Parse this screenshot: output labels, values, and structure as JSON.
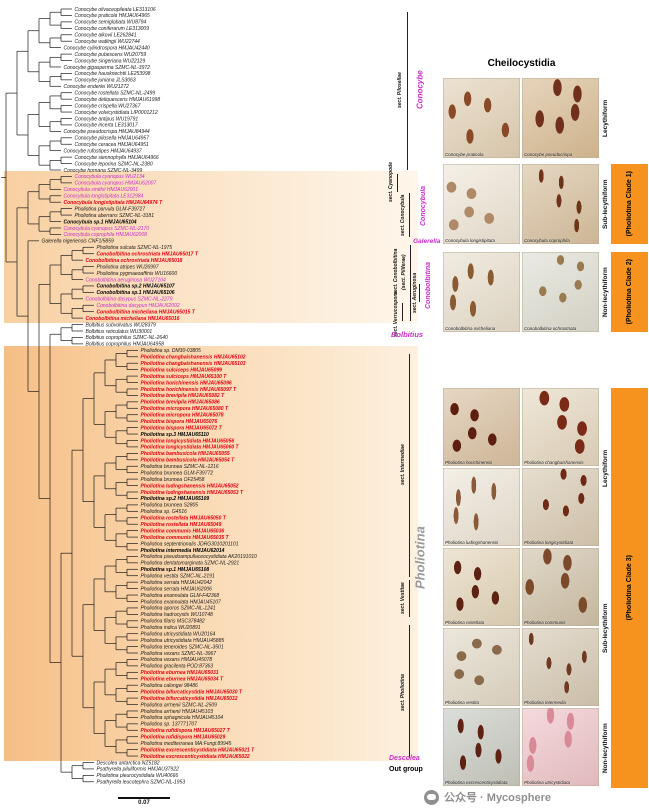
{
  "figure": {
    "title": "Cheilocystidia",
    "scale_bar": "0.07",
    "watermark": "公众号 · Mycosphere"
  },
  "colors": {
    "magenta": "#c92ec9",
    "red": "#e50012",
    "black": "#1a1a1a",
    "orange_bar": "#f6921e",
    "pholiotina_gray": "#9a9a9a"
  },
  "labels": {
    "genus_conocybe": "Conocybe",
    "genus_conocybula": "Conocybula",
    "genus_galerella": "Galerella",
    "genus_conobolbitina": "Conobolbitina",
    "genus_bolbitius": "Bolbitius",
    "genus_pholiotina": "Pholiotina",
    "genus_descolea": "Descolea",
    "outgroup": "Out group",
    "sect_pilosellae": "sect. Pilosellae",
    "sect_cyanopode": "sect. Cyanopode",
    "sect_conocybula": "sect. Conocybula",
    "sect_conobolbitina": "sect. Conobolbitina",
    "sect_piliferae": "(sect. Piliferae)",
    "sect_aeruginosa": "sect. Aeruginosa",
    "sect_verrucospora": "sect. Verrucospora",
    "sect_intermediae": "sect. Intermediae",
    "sect_vestitae": "sect. Vestitae",
    "sect_pholiotina": "sect. Pholiotina"
  },
  "forms": {
    "lecythiform": "Lecythiform",
    "sub_lecythiform": "Sub-lecythiform",
    "non_lecythiform": "Non-lecythiform"
  },
  "clade_bars": {
    "c1": "(Pholiotina Clade 1)",
    "c2": "(Pholiotina Clade 2)",
    "c3": "(Pholiotina Clade 3)"
  },
  "tree": {
    "clades": [
      {
        "name": "Conocybe",
        "leaves": [
          {
            "t": "Conocybe olivaceopileata LE313106",
            "s": "n"
          },
          {
            "t": "Conocybe praticola HMJAU64965",
            "s": "n"
          },
          {
            "t": "Conocybe semiglobata WU8794",
            "s": "n"
          },
          {
            "t": "Conocybe coniferarum LE313009",
            "s": "n"
          },
          {
            "t": "Conocybe alkovii LE262841",
            "s": "n"
          },
          {
            "t": "Conocybe watlingii WU22744",
            "s": "n"
          },
          {
            "t": "Conocybe cylindrospora HMJAU42440",
            "s": "n"
          },
          {
            "t": "Conocybe pubescens WU20759",
            "s": "n"
          },
          {
            "t": "Conocybe singeriana WU22129",
            "s": "n"
          },
          {
            "t": "Conocybe gigasperma SZMC-NL-3972",
            "s": "n"
          },
          {
            "t": "Conocybe hausknechtii LE253998",
            "s": "n"
          },
          {
            "t": "Conocybe juniana JLS3063",
            "s": "n"
          },
          {
            "t": "Conocybe enderlei WU21272",
            "s": "n"
          },
          {
            "t": "Conocybe rostellata SZMC-NL-2499",
            "s": "n"
          },
          {
            "t": "Conocybe deliquescens HMJAU61998",
            "s": "n"
          },
          {
            "t": "Conocybe crispella WU27367",
            "s": "n"
          },
          {
            "t": "Conocybe volvicystidiata LIP0001212",
            "s": "n"
          },
          {
            "t": "Conocybe antipus WU19791",
            "s": "n"
          },
          {
            "t": "Conocybe incerta LE313017",
            "s": "n"
          },
          {
            "t": "Conocybe pseudocrispa HMJAU84944",
            "s": "n"
          },
          {
            "t": "Conocybe pilosella HMJAU64957",
            "s": "n"
          },
          {
            "t": "Conocybe ceracea HMJAU64951",
            "s": "n"
          },
          {
            "t": "Conocybe rufostipes HMJAU64937",
            "s": "n"
          },
          {
            "t": "Conocybe siennophylla HMJAU64966",
            "s": "n"
          },
          {
            "t": "Conocybe leporina SZMC-NL-2380",
            "s": "n"
          },
          {
            "t": "Conocybe hornana SZMC-NL-3499",
            "s": "n"
          }
        ]
      },
      {
        "name": "Conocybula",
        "leaves": [
          {
            "t": "Conocybula cyanopus WU2134",
            "s": "m"
          },
          {
            "t": "Conocybula cyanopus HMJAU62007",
            "s": "m"
          },
          {
            "t": "Conocybula smithii HMJAU62001",
            "s": "m"
          },
          {
            "t": "Conocybula longistipitata LE312984",
            "s": "m"
          },
          {
            "t": "Conocybula longistipitata HMJAU64974 T",
            "s": "rb"
          },
          {
            "t": "Pholiotina parvula GLM-F39727",
            "s": "n"
          },
          {
            "t": "Pholiotina aberrans SZMC-NL-3181",
            "s": "n"
          },
          {
            "t": "Conocybula sp.1 HMJAU65104",
            "s": "b"
          },
          {
            "t": "Conocybula cyanopus SZMC-NL-2170",
            "s": "m"
          },
          {
            "t": "Conocybula coprophila HMJAU62008",
            "s": "m"
          }
        ]
      },
      {
        "name": "Galerella",
        "leaves": [
          {
            "t": "Galerella nigeriensis CNF1/5859",
            "s": "n"
          }
        ]
      },
      {
        "name": "Conobolbitina",
        "leaves": [
          {
            "t": "Pholiotina sulcata SZMC-NL-1975",
            "s": "n"
          },
          {
            "t": "Conobolbitina ochrostriata HMJAU65017 T",
            "s": "rb"
          },
          {
            "t": "Conobolbitina ochrostriata HMJAU65018",
            "s": "rb"
          },
          {
            "t": "Pholiotina atripes WU26997",
            "s": "n"
          },
          {
            "t": "Pholiotina pygmaeoaffinis WU16600",
            "s": "n"
          },
          {
            "t": "Conobolbitina aeruginosa WU27104",
            "s": "m"
          },
          {
            "t": "Conobolbitina sp.2 HMJAU65107",
            "s": "b"
          },
          {
            "t": "Conobolbitina sp.1 HMJAU65106",
            "s": "b"
          },
          {
            "t": "Conobolbitina dasypus SZMC-NL-2279",
            "s": "m"
          },
          {
            "t": "Conobolbitina dasypus HMJAU62002",
            "s": "m"
          },
          {
            "t": "Conobolbitina micheliana HMJAU65015 T",
            "s": "rb"
          },
          {
            "t": "Conobolbitina micheliana HMJAU65016",
            "s": "rb"
          }
        ]
      },
      {
        "name": "Bolbitius",
        "leaves": [
          {
            "t": "Bolbitius subvolvatus WU28379",
            "s": "n"
          },
          {
            "t": "Bolbitius reticulatus WU30001",
            "s": "n"
          },
          {
            "t": "Bolbitius coprophilus SZMC-NL-2640",
            "s": "n"
          },
          {
            "t": "Bolbitius coprophilus HMJAU64958",
            "s": "n"
          }
        ]
      },
      {
        "name": "Pholiotina",
        "leaves": [
          {
            "t": "Pholiotina sp. DM30-03805",
            "s": "n"
          },
          {
            "t": "Pholiotina changbaishanensis HMJAU65102",
            "s": "rb"
          },
          {
            "t": "Pholiotina changbaishanensis HMJAU65103",
            "s": "rb"
          },
          {
            "t": "Pholiotina sulciceps HMJAU65099",
            "s": "rb"
          },
          {
            "t": "Pholiotina sulciceps HMJAU65100 T",
            "s": "rb"
          },
          {
            "t": "Pholiotina horichinensis HMJAU65096",
            "s": "rb"
          },
          {
            "t": "Pholiotina horichinensis HMJAU65097 T",
            "s": "rb"
          },
          {
            "t": "Pholiotina brevipila HMJAU65082 T",
            "s": "rb"
          },
          {
            "t": "Pholiotina brevipila HMJAU65086",
            "s": "rb"
          },
          {
            "t": "Pholiotina micropora HMJAU65080 T",
            "s": "rb"
          },
          {
            "t": "Pholiotina micropora HMJAU65078",
            "s": "rb"
          },
          {
            "t": "Pholiotina bispora HMJAU65076",
            "s": "rb"
          },
          {
            "t": "Pholiotina bispora HMJAU65072 T",
            "s": "rb"
          },
          {
            "t": "Pholiotina sp.3 HMJAU65110",
            "s": "b"
          },
          {
            "t": "Pholiotina longicystidiata HMJAU65056",
            "s": "rb"
          },
          {
            "t": "Pholiotina longicystidiata HMJAU65060 T",
            "s": "rb"
          },
          {
            "t": "Pholiotina bambusicola HMJAU65055",
            "s": "rb"
          },
          {
            "t": "Pholiotina bambusicola HMJAU65054 T",
            "s": "rb"
          },
          {
            "t": "Pholiotina brunnea SZMC-NL-1216",
            "s": "n"
          },
          {
            "t": "Pholiotina brunnea GLM-F39772",
            "s": "n"
          },
          {
            "t": "Pholiotina brunnea OF25458",
            "s": "n"
          },
          {
            "t": "Pholiotina ludingshanensis HMJAU65052",
            "s": "rb"
          },
          {
            "t": "Pholiotina ludingshanensis HMJAU65053 T",
            "s": "rb"
          },
          {
            "t": "Pholiotina sp.2 HMJAU65109",
            "s": "b"
          },
          {
            "t": "Pholiotina brunnea S2805",
            "s": "n"
          },
          {
            "t": "Pholiotina sp. G4516",
            "s": "n"
          },
          {
            "t": "Pholiotina rostellata HMJAU65050 T",
            "s": "rb"
          },
          {
            "t": "Pholiotina rostellata HMJAU65049",
            "s": "rb"
          },
          {
            "t": "Pholiotina communis HMJAU65036",
            "s": "rb"
          },
          {
            "t": "Pholiotina communis HMJAU65035 T",
            "s": "rb"
          },
          {
            "t": "Pholiotina septentrionalis JDRG3010201101",
            "s": "n"
          },
          {
            "t": "Pholiotina intermedia HMJAU62014",
            "s": "b"
          },
          {
            "t": "Pholiotina pseudoampullaceocystidiata AK20191010",
            "s": "n"
          },
          {
            "t": "Pholiotina dentatomarginata SZMC-NL-2921",
            "s": "n"
          },
          {
            "t": "Pholiotina sp.1 HMJAU65108",
            "s": "b"
          },
          {
            "t": "Pholiotina vestita SZMC-NL-2191",
            "s": "n"
          },
          {
            "t": "Pholiotina serrata HMJAU42042",
            "s": "n"
          },
          {
            "t": "Pholiotina serrata HMJAU62006",
            "s": "n"
          },
          {
            "t": "Pholiotina exannulata GLM-F42368",
            "s": "n"
          },
          {
            "t": "Pholiotina exannulata HMJAU45107",
            "s": "n"
          },
          {
            "t": "Pholiotina aporos SZMC-NL-1241",
            "s": "n"
          },
          {
            "t": "Pholiotina hadrocystis WU10748",
            "s": "n"
          },
          {
            "t": "Pholiotina filaris MSC378482",
            "s": "n"
          },
          {
            "t": "Pholiotina indica WU20891",
            "s": "n"
          },
          {
            "t": "Pholiotina utricystidiata WU20164",
            "s": "n"
          },
          {
            "t": "Pholiotina utricystidiata HMJAU45885",
            "s": "n"
          },
          {
            "t": "Pholiotina teneroides SZMC-NL-3501",
            "s": "n"
          },
          {
            "t": "Pholiotina vexans SZMC-NL-3967",
            "s": "n"
          },
          {
            "t": "Pholiotina vexans HMJAU45078",
            "s": "n"
          },
          {
            "t": "Pholiotina gracilenta POD:87363",
            "s": "n"
          },
          {
            "t": "Pholiotina eburnea HMJAU65031",
            "s": "rb"
          },
          {
            "t": "Pholiotina eburnea HMJAU65034 T",
            "s": "rb"
          },
          {
            "t": "Pholiotina calongei 98486",
            "s": "n"
          },
          {
            "t": "Pholiotina bifurcaticystidia HMJAU65030 T",
            "s": "rb"
          },
          {
            "t": "Pholiotina bifurcaticystidia HMJAU65032",
            "s": "rb"
          },
          {
            "t": "Pholiotina arrhenii SZMC-NL-2509",
            "s": "n"
          },
          {
            "t": "Pholiotina arrhenii HMJAU45103",
            "s": "n"
          },
          {
            "t": "Pholiotina sphagnicola HMJAU45104",
            "s": "n"
          },
          {
            "t": "Pholiotina sp. 137771707",
            "s": "n"
          },
          {
            "t": "Pholiotina rufidispora HMJAU65027 T",
            "s": "rb"
          },
          {
            "t": "Pholiotina rufidispora HMJAU65029",
            "s": "rb"
          },
          {
            "t": "Pholiotina mediterranea MA:Fungi:89945",
            "s": "n"
          },
          {
            "t": "Pholiotina excrescenticystidiata HMJAU65021 T",
            "s": "rb"
          },
          {
            "t": "Pholiotina excrescenticystidiata HMJAU65022",
            "s": "rb"
          }
        ]
      },
      {
        "name": "Outgroup",
        "leaves": [
          {
            "t": "Descolea antarctica NZ5182",
            "s": "n"
          },
          {
            "t": "Psathyrella piluliformis HMJAU37922",
            "s": "n"
          },
          {
            "t": "Pholiotina pleurocystidiata WU40666",
            "s": "n"
          },
          {
            "t": "Psathyrella leucotephra SZMC-NL-1953",
            "s": "n"
          }
        ]
      }
    ]
  },
  "tiles": {
    "groups": [
      [
        {
          "caption": "Conocybe praticola",
          "base": "#e3d3b9",
          "blob": "#8a4a28"
        },
        {
          "caption": "Conocybe pseudocrispa",
          "base": "#d9be97",
          "blob": "#70301c"
        }
      ],
      [
        {
          "caption": "Conocybula longistipitata",
          "base": "#efe8da",
          "blob": "#b08968"
        },
        {
          "caption": "Conocybula coprophila",
          "base": "#d8c2a2",
          "blob": "#6e3418"
        }
      ],
      [
        {
          "caption": "Conobolbitina micheliana",
          "base": "#e9e2d2",
          "blob": "#8a5a30"
        },
        {
          "caption": "Conobolbitina ochrostriata",
          "base": "#dfe0d6",
          "blob": "#9a7a50"
        }
      ]
    ],
    "pholiotina_rows": [
      [
        {
          "caption": "Pholiotina horichinensis",
          "base": "#d9c2a4",
          "blob": "#5e1e10"
        },
        {
          "caption": "Pholiotina changbaishanensis",
          "base": "#e6dac4",
          "blob": "#7a2a16"
        }
      ],
      [
        {
          "caption": "Pholiotina ludingshanensis",
          "base": "#ede7da",
          "blob": "#8a5a3a"
        },
        {
          "caption": "Pholiotina longicystidiata",
          "base": "#d9ccb6",
          "blob": "#6e2a14"
        }
      ],
      [
        {
          "caption": "Pholiotina rostellata",
          "base": "#e4d7bd",
          "blob": "#5e2212"
        },
        {
          "caption": "Pholiotina communis",
          "base": "#cfc3ab",
          "blob": "#7a4a2a"
        }
      ],
      [
        {
          "caption": "Pholiotina vestita",
          "base": "#e2dbca",
          "blob": "#8a6a4a"
        },
        {
          "caption": "Pholiotina intermedia",
          "base": "#d6cbb7",
          "blob": "#6e3a20"
        }
      ],
      [
        {
          "caption": "Pholiotina excrescenticystidiata",
          "base": "#c8ccc5",
          "blob": "#5e2212"
        },
        {
          "caption": "Pholiotina utricystidiata",
          "base": "#efc6cc",
          "blob": "#d98a96"
        }
      ]
    ]
  }
}
